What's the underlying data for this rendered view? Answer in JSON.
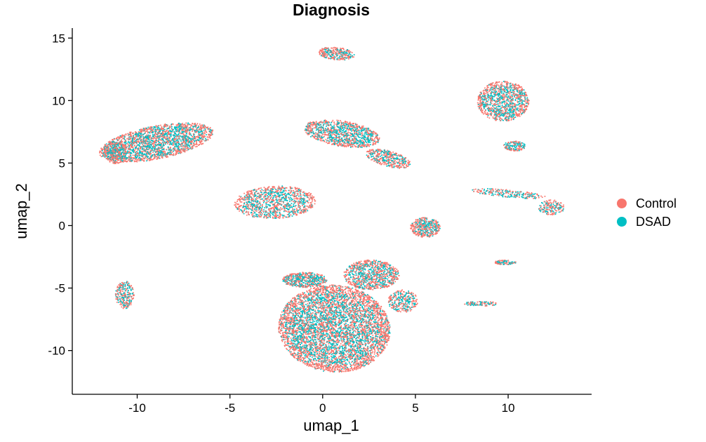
{
  "chart_data": {
    "type": "scatter",
    "title": "Diagnosis",
    "xlabel": "umap_1",
    "ylabel": "umap_2",
    "xlim": [
      -13.5,
      14.5
    ],
    "ylim": [
      -13.5,
      15.8
    ],
    "xticks": [
      -10,
      -5,
      0,
      5,
      10
    ],
    "yticks": [
      -10,
      -5,
      0,
      5,
      10,
      15
    ],
    "grid": false,
    "legend_position": "right",
    "series": [
      {
        "name": "Control",
        "color": "#F8766D"
      },
      {
        "name": "DSAD",
        "color": "#00BFC4"
      }
    ],
    "clusters": [
      {
        "cx": -9.0,
        "cy": 6.7,
        "rx": 3.2,
        "ry": 1.3,
        "rot": 18,
        "n": 2200
      },
      {
        "cx": -11.2,
        "cy": 5.9,
        "rx": 0.6,
        "ry": 0.9,
        "rot": 0,
        "n": 300
      },
      {
        "cx": 1.0,
        "cy": 7.4,
        "rx": 2.1,
        "ry": 1.0,
        "rot": -15,
        "n": 1100
      },
      {
        "cx": 3.5,
        "cy": 5.4,
        "rx": 1.3,
        "ry": 0.6,
        "rot": -25,
        "n": 400
      },
      {
        "cx": 0.7,
        "cy": 13.8,
        "rx": 1.0,
        "ry": 0.5,
        "rot": -10,
        "n": 300
      },
      {
        "cx": 9.7,
        "cy": 10.0,
        "rx": 1.4,
        "ry": 1.6,
        "rot": 0,
        "n": 1100
      },
      {
        "cx": 10.3,
        "cy": 6.4,
        "rx": 0.6,
        "ry": 0.4,
        "rot": 0,
        "n": 160
      },
      {
        "cx": -2.6,
        "cy": 1.9,
        "rx": 2.2,
        "ry": 1.3,
        "rot": 5,
        "n": 1100
      },
      {
        "cx": 5.5,
        "cy": -0.1,
        "rx": 0.8,
        "ry": 0.8,
        "rot": 0,
        "n": 400
      },
      {
        "cx": 10.0,
        "cy": 2.6,
        "rx": 2.0,
        "ry": 0.3,
        "rot": -8,
        "n": 220
      },
      {
        "cx": 12.3,
        "cy": 1.5,
        "rx": 0.7,
        "ry": 0.6,
        "rot": 0,
        "n": 180
      },
      {
        "cx": 9.8,
        "cy": -2.9,
        "rx": 0.6,
        "ry": 0.18,
        "rot": 0,
        "n": 90
      },
      {
        "cx": 8.5,
        "cy": -6.2,
        "rx": 0.9,
        "ry": 0.2,
        "rot": 0,
        "n": 100
      },
      {
        "cx": -10.7,
        "cy": -5.5,
        "rx": 0.5,
        "ry": 1.1,
        "rot": 0,
        "n": 260
      },
      {
        "cx": 0.6,
        "cy": -8.2,
        "rx": 3.0,
        "ry": 3.5,
        "rot": 8,
        "n": 5200
      },
      {
        "cx": 2.6,
        "cy": -3.9,
        "rx": 1.5,
        "ry": 1.2,
        "rot": 0,
        "n": 900
      },
      {
        "cx": -1.0,
        "cy": -4.3,
        "rx": 1.2,
        "ry": 0.6,
        "rot": 0,
        "n": 500
      },
      {
        "cx": 4.3,
        "cy": -6.0,
        "rx": 0.8,
        "ry": 0.9,
        "rot": 0,
        "n": 300
      }
    ]
  }
}
